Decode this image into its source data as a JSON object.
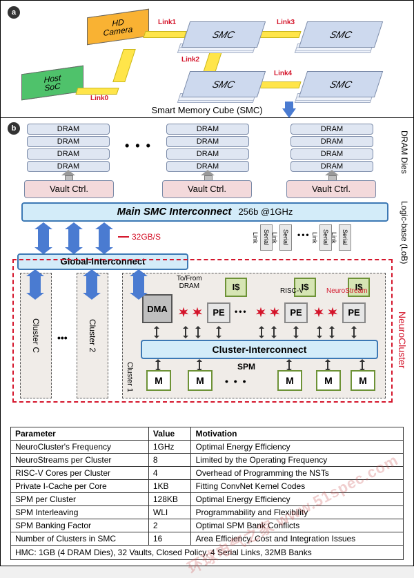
{
  "section_a": {
    "hd_camera": "HD\nCamera",
    "host": "Host\nSoC",
    "smc_label": "SMC",
    "links": [
      "Link0",
      "Link1",
      "Link2",
      "Link3",
      "Link4"
    ],
    "caption": "Smart Memory Cube (SMC)",
    "colors": {
      "camera": "#f9b233",
      "host": "#4fc26b",
      "smc": "#cdd9ee",
      "bus": "#ffe54a",
      "link_text": "#d4142a"
    }
  },
  "section_b": {
    "dram_label": "DRAM",
    "dram_dies_label": "DRAM Dies",
    "vault_label": "Vault Ctrl.",
    "main_interconnect": "Main SMC Interconnect",
    "main_spec": "256b @1GHz",
    "bandwidth": "32GB/S",
    "serial_link": "Serial Link",
    "global_interconnect": "Global-Interconnect",
    "lob_label": "Logic-base (LoB)",
    "neurocluster_label": "NeuroCluster",
    "cluster_c": "Cluster C",
    "cluster_2": "Cluster 2",
    "cluster_1": "Cluster 1",
    "tofrom": "To/From\nDRAM",
    "dma": "DMA",
    "icache": "I$",
    "pe": "PE",
    "riscv": "RISC-V",
    "neurostream": "NeuroStream",
    "cluster_interconnect": "Cluster-Interconnect",
    "spm": "SPM",
    "m": "M",
    "colors": {
      "interconnect_bg": "#d3ecf9",
      "interconnect_border": "#3c78b4",
      "vault": "#f3d9db",
      "dram": "#dfe6f2",
      "green_fill": "#d6e5b4",
      "green_border": "#6d9236",
      "red": "#d4142a",
      "arrow": "#4a7bd1",
      "cluster_bg": "#f0ece8"
    }
  },
  "table": {
    "headers": [
      "Parameter",
      "Value",
      "Motivation"
    ],
    "rows": [
      [
        "NeuroCluster's Frequency",
        "1GHz",
        "Optimal Energy Efficiency"
      ],
      [
        "NeuroStreams per Cluster",
        "8",
        "Limited by the Operating Frequency"
      ],
      [
        "RISC-V Cores per Cluster",
        "4",
        "Overhead of Programming the NSTs"
      ],
      [
        "Private I-Cache per Core",
        "1KB",
        "Fitting ConvNet Kernel Codes"
      ],
      [
        "SPM per Cluster",
        "128KB",
        "Optimal Energy Efficiency"
      ],
      [
        "SPM Interleaving",
        "WLI",
        "Programmability and Flexibility"
      ],
      [
        "SPM Banking Factor",
        "2",
        "Optimal SPM Bank Conflicts"
      ],
      [
        "Number of Clusters in SMC",
        "16",
        "Area Efficiency, Cost and Integration Issues"
      ]
    ],
    "footer": "HMC: 1GB (4 DRAM Dies), 32 Vaults, Closed Policy, 4 Serial Links, 32MB Banks"
  },
  "watermark": "环球电气之家 www.51spec.com"
}
